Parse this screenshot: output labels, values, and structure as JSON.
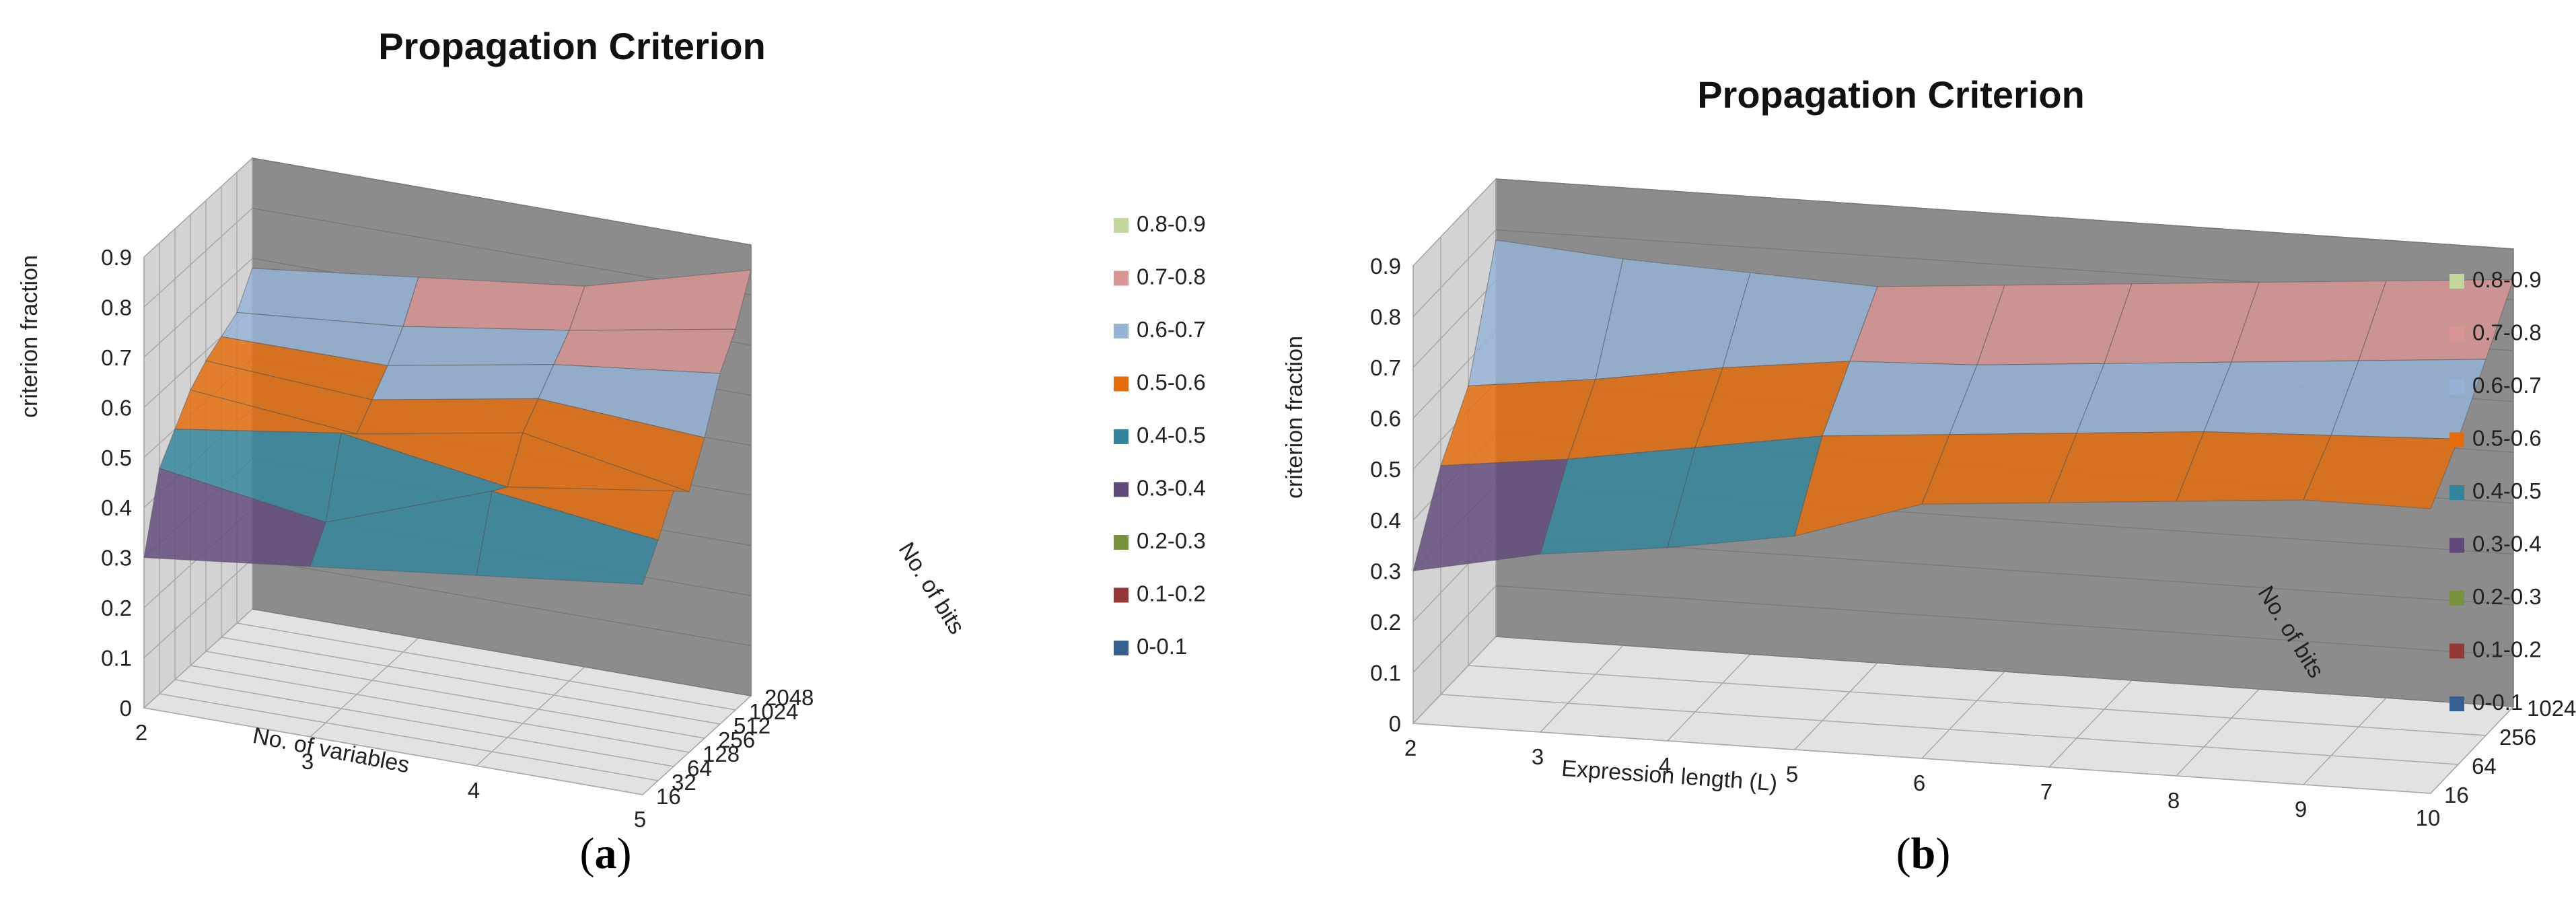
{
  "legend_entries": [
    "0.8-0.9",
    "0.7-0.8",
    "0.6-0.7",
    "0.5-0.6",
    "0.4-0.5",
    "0.3-0.4",
    "0.2-0.3",
    "0.1-0.2",
    "0-0.1"
  ],
  "legend_colors": [
    "#c3d69b",
    "#d99594",
    "#95b3d7",
    "#e46c0a",
    "#31859c",
    "#60497a",
    "#77933c",
    "#953735",
    "#376092"
  ],
  "chart_data": [
    {
      "type": "surface3d",
      "panel": "a",
      "title": "Propagation Criterion",
      "xlabel": "No. of variables",
      "ylabel": "criterion fraction",
      "zlabel": "No. of bits",
      "x_categories": [
        "2",
        "3",
        "4",
        "5"
      ],
      "z_categories": [
        "16",
        "32",
        "64",
        "128",
        "256",
        "512",
        "1024",
        "2048"
      ],
      "y_ticks": [
        "0",
        "0.1",
        "0.2",
        "0.3",
        "0.4",
        "0.5",
        "0.6",
        "0.7",
        "0.8",
        "0.9"
      ],
      "ylim": [
        0,
        0.9
      ],
      "bands": [
        "0-0.1",
        "0.1-0.2",
        "0.2-0.3",
        "0.3-0.4",
        "0.4-0.5",
        "0.5-0.6",
        "0.6-0.7",
        "0.7-0.8",
        "0.8-0.9"
      ],
      "values": [
        [
          0.3,
          0.45,
          0.5,
          0.55,
          0.58,
          0.6,
          0.62,
          0.68
        ],
        [
          0.34,
          0.4,
          0.55,
          0.52,
          0.56,
          0.6,
          0.65,
          0.72
        ],
        [
          0.38,
          0.52,
          0.5,
          0.58,
          0.62,
          0.66,
          0.7,
          0.76
        ],
        [
          0.42,
          0.48,
          0.55,
          0.52,
          0.6,
          0.7,
          0.76,
          0.85
        ]
      ]
    },
    {
      "type": "surface3d",
      "panel": "b",
      "title": "Propagation Criterion",
      "xlabel": "Expression length (L)",
      "ylabel": "criterion fraction",
      "zlabel": "No. of bits",
      "x_categories": [
        "2",
        "3",
        "4",
        "5",
        "6",
        "7",
        "8",
        "9",
        "10"
      ],
      "z_categories": [
        "16",
        "64",
        "256",
        "1024"
      ],
      "y_ticks": [
        "0",
        "0.1",
        "0.2",
        "0.3",
        "0.4",
        "0.5",
        "0.6",
        "0.7",
        "0.8",
        "0.9"
      ],
      "ylim": [
        0,
        0.9
      ],
      "bands": [
        "0-0.1",
        "0.1-0.2",
        "0.2-0.3",
        "0.3-0.4",
        "0.4-0.5",
        "0.5-0.6",
        "0.6-0.7",
        "0.7-0.8",
        "0.8-0.9"
      ],
      "values": [
        [
          0.3,
          0.45,
          0.55,
          0.78
        ],
        [
          0.35,
          0.48,
          0.58,
          0.76
        ],
        [
          0.38,
          0.52,
          0.62,
          0.75
        ],
        [
          0.42,
          0.56,
          0.65,
          0.74
        ],
        [
          0.5,
          0.58,
          0.66,
          0.76
        ],
        [
          0.52,
          0.6,
          0.68,
          0.78
        ],
        [
          0.54,
          0.62,
          0.7,
          0.8
        ],
        [
          0.56,
          0.63,
          0.72,
          0.82
        ],
        [
          0.56,
          0.64,
          0.74,
          0.84
        ]
      ]
    }
  ],
  "captions": {
    "a": "a",
    "b": "b",
    "open": "(",
    "close": ")"
  }
}
